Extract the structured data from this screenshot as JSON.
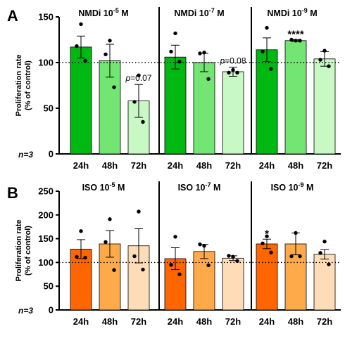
{
  "n_label": "n=3",
  "chart_data": [
    {
      "type": "bar",
      "panel": "A",
      "ylabel": "Proliferation rate\n(% of control)",
      "ylim": [
        0,
        150
      ],
      "yticks": [
        0,
        50,
        100,
        150
      ],
      "reference_line": 100,
      "n_label": "n=3",
      "categories": [
        "24h",
        "48h",
        "72h"
      ],
      "groups": [
        {
          "title": "NMDi 10",
          "exponent": "-5",
          "unit": " M",
          "colors": [
            "#00b812",
            "#72e572",
            "#c8f8c4"
          ],
          "values": [
            117,
            102,
            58
          ],
          "errors": [
            12,
            18,
            18
          ],
          "points": [
            [
              142,
              118,
              102
            ],
            [
              124,
              109,
              73
            ],
            [
              86,
              57,
              35
            ]
          ],
          "annotations": [
            "",
            "",
            "p=0.07"
          ]
        },
        {
          "title": "NMDi 10",
          "exponent": "-7",
          "unit": " M",
          "colors": [
            "#00b812",
            "#72e572",
            "#c8f8c4"
          ],
          "values": [
            106,
            100,
            90
          ],
          "errors": [
            13,
            10,
            5
          ],
          "points": [
            [
              132,
              112,
              101
            ],
            [
              111,
              110,
              82
            ],
            [
              92,
              89,
              89
            ]
          ],
          "annotations": [
            "",
            "",
            "p=0.08"
          ]
        },
        {
          "title": "NMDi 10",
          "exponent": "-9",
          "unit": " M",
          "colors": [
            "#00b812",
            "#72e572",
            "#c8f8c4"
          ],
          "values": [
            114,
            124,
            104
          ],
          "errors": [
            13,
            1,
            8
          ],
          "points": [
            [
              138,
              112,
              93
            ],
            [
              124,
              125,
              124
            ],
            [
              113,
              103,
              96
            ]
          ],
          "annotations": [
            "",
            "****",
            ""
          ]
        }
      ]
    },
    {
      "type": "bar",
      "panel": "B",
      "ylabel": "Proliferation rate\n(% of control)",
      "ylim": [
        0,
        250
      ],
      "yticks": [
        0,
        50,
        100,
        150,
        200,
        250
      ],
      "reference_line": 100,
      "n_label": "n=3",
      "categories": [
        "24h",
        "48h",
        "72h"
      ],
      "groups": [
        {
          "title": "ISO 10",
          "exponent": "-5",
          "unit": " M",
          "colors": [
            "#ff6600",
            "#ffaa4a",
            "#ffdcb8"
          ],
          "values": [
            128,
            139,
            135
          ],
          "errors": [
            20,
            28,
            36
          ],
          "points": [
            [
              166,
              112,
              110
            ],
            [
              191,
              143,
              84
            ],
            [
              207,
              113,
              85
            ]
          ],
          "annotations": [
            "",
            "",
            ""
          ]
        },
        {
          "title": "ISO 10",
          "exponent": "-7",
          "unit": " M",
          "colors": [
            "#ff6600",
            "#ffaa4a",
            "#ffdcb8"
          ],
          "values": [
            108,
            123,
            109
          ],
          "errors": [
            23,
            15,
            5
          ],
          "points": [
            [
              154,
              95,
              75
            ],
            [
              135,
              138,
              94
            ],
            [
              112,
              114,
              103
            ]
          ],
          "annotations": [
            "",
            "",
            ""
          ]
        },
        {
          "title": "ISO 10",
          "exponent": "-9",
          "unit": " M",
          "colors": [
            "#ff6600",
            "#ffaa4a",
            "#ffdcb8"
          ],
          "values": [
            139,
            139,
            117
          ],
          "errors": [
            10,
            23,
            10
          ],
          "points": [
            [
              155,
              140,
              121
            ],
            [
              162,
              113,
              113
            ],
            [
              144,
              120,
              96
            ]
          ],
          "annotations": [
            "*",
            "",
            ""
          ]
        }
      ]
    }
  ]
}
